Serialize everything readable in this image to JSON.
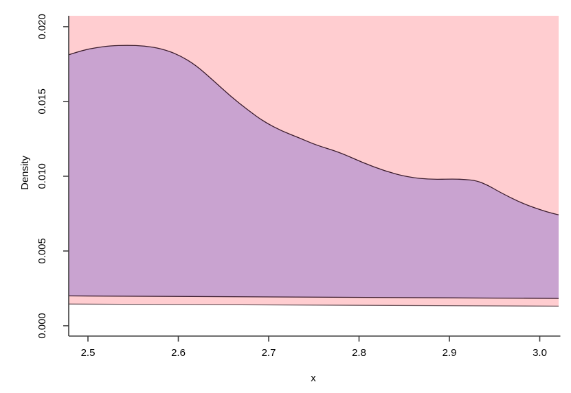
{
  "chart_data": {
    "type": "area",
    "title": "",
    "xlabel": "x",
    "ylabel": "Density",
    "xlim": [
      2.4787,
      3.0209
    ],
    "ylim": [
      -0.00069,
      0.02073
    ],
    "x_ticks": [
      2.5,
      2.6,
      2.7,
      2.8,
      2.9,
      3.0
    ],
    "x_tick_labels": [
      "2.5",
      "2.6",
      "2.7",
      "2.8",
      "2.9",
      "3.0"
    ],
    "y_ticks": [
      0.0,
      0.005,
      0.01,
      0.015,
      0.02
    ],
    "y_tick_labels": [
      "0.000",
      "0.005",
      "0.010",
      "0.015",
      "0.020"
    ],
    "grid": false,
    "legend": null,
    "box_type": "axes-only-no-box",
    "background": "#ffffff",
    "axis_color": "#3d3d3d",
    "series": [
      {
        "name": "pink-density-band",
        "description": "light pink filled region; upper boundary lies above ylim (clipped at plot top), lower boundary is a nearly horizontal line",
        "fill": "#ffcdd0",
        "stroke": "#6f585e",
        "upper_clipped_at_top": true,
        "lower": [
          {
            "x": 2.4787,
            "y": 0.00145
          },
          {
            "x": 3.0209,
            "y": 0.00131
          }
        ]
      },
      {
        "name": "purple-density-curve",
        "description": "mauve filled region between wavy density curve (top) and nearly horizontal line (bottom)",
        "fill": "#c9a3d0",
        "stroke": "#3b1c2c",
        "upper": [
          {
            "x": 2.4787,
            "y": 0.01812
          },
          {
            "x": 2.4939,
            "y": 0.01842
          },
          {
            "x": 2.5091,
            "y": 0.0186
          },
          {
            "x": 2.5243,
            "y": 0.01872
          },
          {
            "x": 2.5433,
            "y": 0.01876
          },
          {
            "x": 2.5624,
            "y": 0.01872
          },
          {
            "x": 2.5814,
            "y": 0.01853
          },
          {
            "x": 2.6004,
            "y": 0.01812
          },
          {
            "x": 2.6194,
            "y": 0.01743
          },
          {
            "x": 2.6384,
            "y": 0.01642
          },
          {
            "x": 2.6574,
            "y": 0.01537
          },
          {
            "x": 2.6764,
            "y": 0.01445
          },
          {
            "x": 2.6954,
            "y": 0.01362
          },
          {
            "x": 2.7144,
            "y": 0.01303
          },
          {
            "x": 2.7335,
            "y": 0.01257
          },
          {
            "x": 2.7525,
            "y": 0.01208
          },
          {
            "x": 2.7776,
            "y": 0.01162
          },
          {
            "x": 2.8034,
            "y": 0.01093
          },
          {
            "x": 2.8285,
            "y": 0.01035
          },
          {
            "x": 2.8536,
            "y": 0.00994
          },
          {
            "x": 2.8795,
            "y": 0.00978
          },
          {
            "x": 2.9046,
            "y": 0.00982
          },
          {
            "x": 2.9175,
            "y": 0.00978
          },
          {
            "x": 2.9297,
            "y": 0.00971
          },
          {
            "x": 2.9426,
            "y": 0.0094
          },
          {
            "x": 2.9555,
            "y": 0.00894
          },
          {
            "x": 2.9806,
            "y": 0.00818
          },
          {
            "x": 3.0057,
            "y": 0.00765
          },
          {
            "x": 3.0209,
            "y": 0.00742
          }
        ],
        "lower": [
          {
            "x": 2.4787,
            "y": 0.002
          },
          {
            "x": 3.0209,
            "y": 0.00183
          }
        ]
      }
    ]
  }
}
